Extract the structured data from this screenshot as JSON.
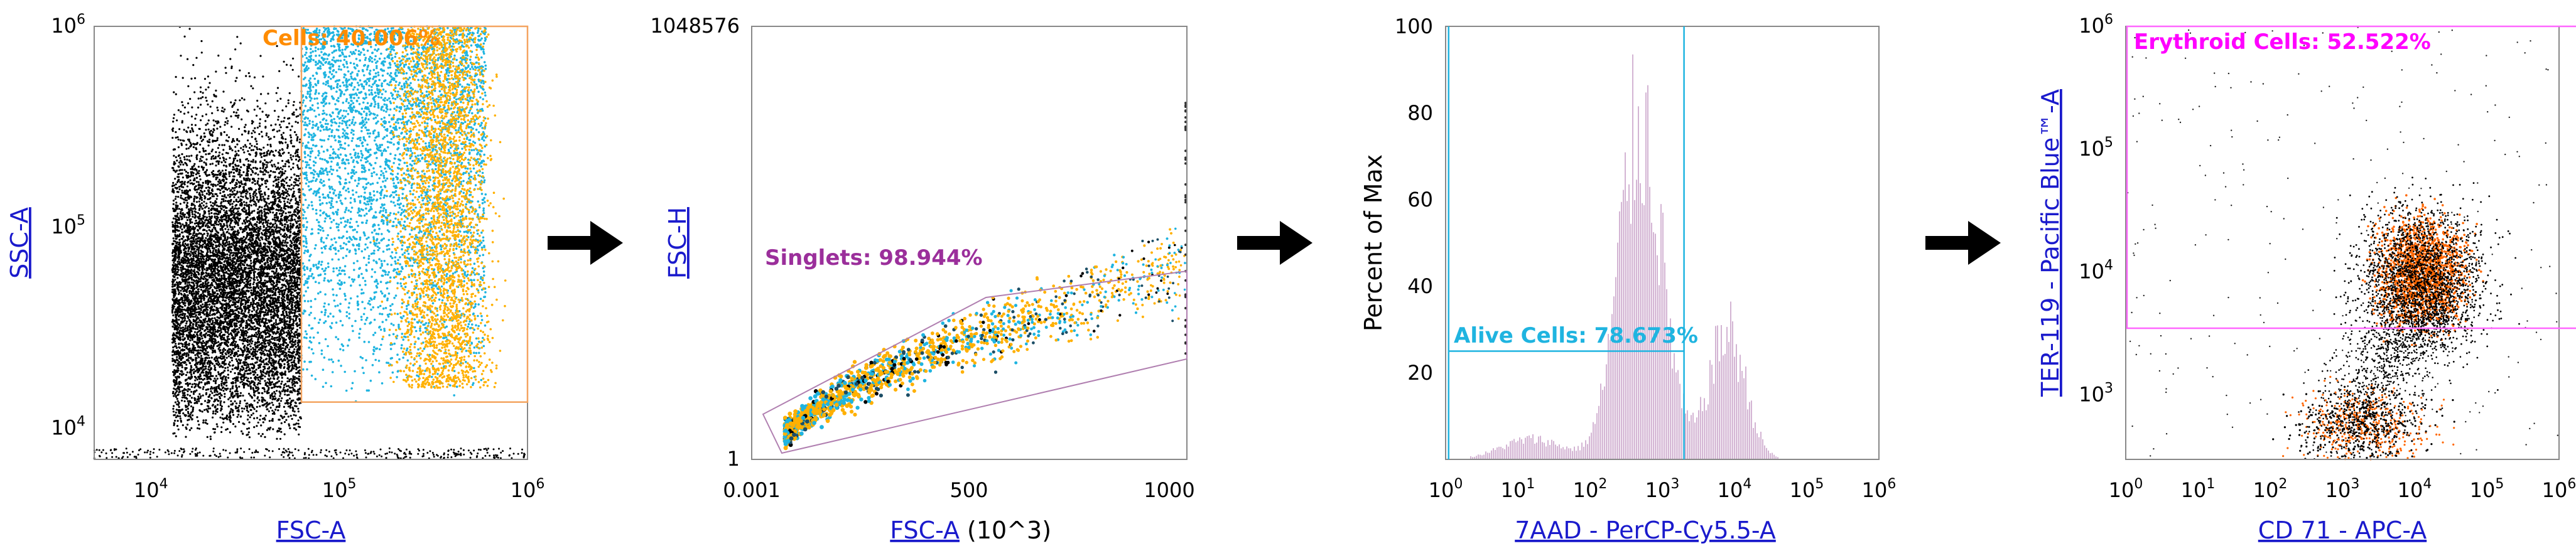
{
  "chart_data": [
    {
      "type": "scatter",
      "title": "",
      "xlabel": "FSC-A",
      "ylabel": "SSC-A",
      "xscale": "log",
      "yscale": "log",
      "xlim": [
        5000,
        1000000
      ],
      "ylim": [
        7000,
        1000000
      ],
      "x_ticks": [
        {
          "base": "10",
          "exp": "4"
        },
        {
          "base": "10",
          "exp": "5"
        },
        {
          "base": "10",
          "exp": "6"
        }
      ],
      "y_ticks": [
        {
          "base": "10",
          "exp": "4"
        },
        {
          "base": "10",
          "exp": "5"
        },
        {
          "base": "10",
          "exp": "6"
        }
      ],
      "gate": {
        "label": "Cells: 40.006%",
        "type": "rectangle",
        "x_range": [
          63000,
          1000000
        ],
        "y_range": [
          13500,
          1000000
        ]
      },
      "populations": [
        {
          "name": "black debris",
          "color": "#000000",
          "x_range": [
            13000,
            63000
          ],
          "y_range": [
            8000,
            1000000
          ]
        },
        {
          "name": "cyan cells",
          "color": "#1fb4e0",
          "x_range": [
            63000,
            600000
          ],
          "y_range": [
            13500,
            1000000
          ]
        },
        {
          "name": "orange cells",
          "color": "#ffb000",
          "x_range": [
            200000,
            900000
          ],
          "y_range": [
            13500,
            1000000
          ]
        }
      ]
    },
    {
      "type": "scatter",
      "title": "",
      "xlabel": "FSC-A",
      "xlabel_suffix": "(10^3)",
      "ylabel": "FSC-H",
      "xlim": [
        0.001,
        1000
      ],
      "ylim": [
        1,
        1048576
      ],
      "x_ticks": [
        "0.001",
        "500",
        "1000"
      ],
      "y_ticks": [
        "1",
        "1048576"
      ],
      "gate": {
        "label": "Singlets: 98.944%",
        "type": "polygon"
      }
    },
    {
      "type": "line",
      "title": "",
      "xlabel": "7AAD - PerCP-Cy5.5-A",
      "ylabel": "Percent of Max",
      "xscale": "log",
      "xlim": [
        1,
        1000000
      ],
      "ylim": [
        0,
        100
      ],
      "x_ticks": [
        {
          "base": "10",
          "exp": "0"
        },
        {
          "base": "10",
          "exp": "1"
        },
        {
          "base": "10",
          "exp": "2"
        },
        {
          "base": "10",
          "exp": "3"
        },
        {
          "base": "10",
          "exp": "4"
        },
        {
          "base": "10",
          "exp": "5"
        },
        {
          "base": "10",
          "exp": "6"
        }
      ],
      "y_ticks": [
        "20",
        "40",
        "60",
        "80",
        "100"
      ],
      "series_color": "#c8a2c8",
      "gate": {
        "label": "Alive Cells: 78.673%",
        "type": "range",
        "x_range": [
          1.1,
          2000
        ],
        "y_level": 25
      }
    },
    {
      "type": "scatter",
      "title": "",
      "xlabel": "CD 71 - APC-A",
      "ylabel": "TER-119 - Pacific Blue™-A",
      "xscale": "log",
      "yscale": "log",
      "xlim": [
        1,
        1000000
      ],
      "ylim": [
        300,
        1000000
      ],
      "x_ticks": [
        {
          "base": "10",
          "exp": "0"
        },
        {
          "base": "10",
          "exp": "1"
        },
        {
          "base": "10",
          "exp": "2"
        },
        {
          "base": "10",
          "exp": "3"
        },
        {
          "base": "10",
          "exp": "4"
        },
        {
          "base": "10",
          "exp": "5"
        },
        {
          "base": "10",
          "exp": "6"
        }
      ],
      "y_ticks": [
        {
          "base": "10",
          "exp": "3"
        },
        {
          "base": "10",
          "exp": "4"
        },
        {
          "base": "10",
          "exp": "5"
        },
        {
          "base": "10",
          "exp": "6"
        }
      ],
      "gate": {
        "label": "Erythroid Cells: 52.522%",
        "type": "rectangle",
        "x_range": [
          1,
          500000
        ],
        "y_range": [
          3500,
          1000000
        ]
      }
    }
  ],
  "colors": {
    "gate1": "#f4a460",
    "gate2": "#9b59b6",
    "gate3": "#1fb4e0",
    "gate4": "#ff33ff",
    "cyan": "#1fb4e0",
    "orange": "#ffb000",
    "dark_orange": "#ff6600",
    "hist": "#c8a2c8"
  }
}
